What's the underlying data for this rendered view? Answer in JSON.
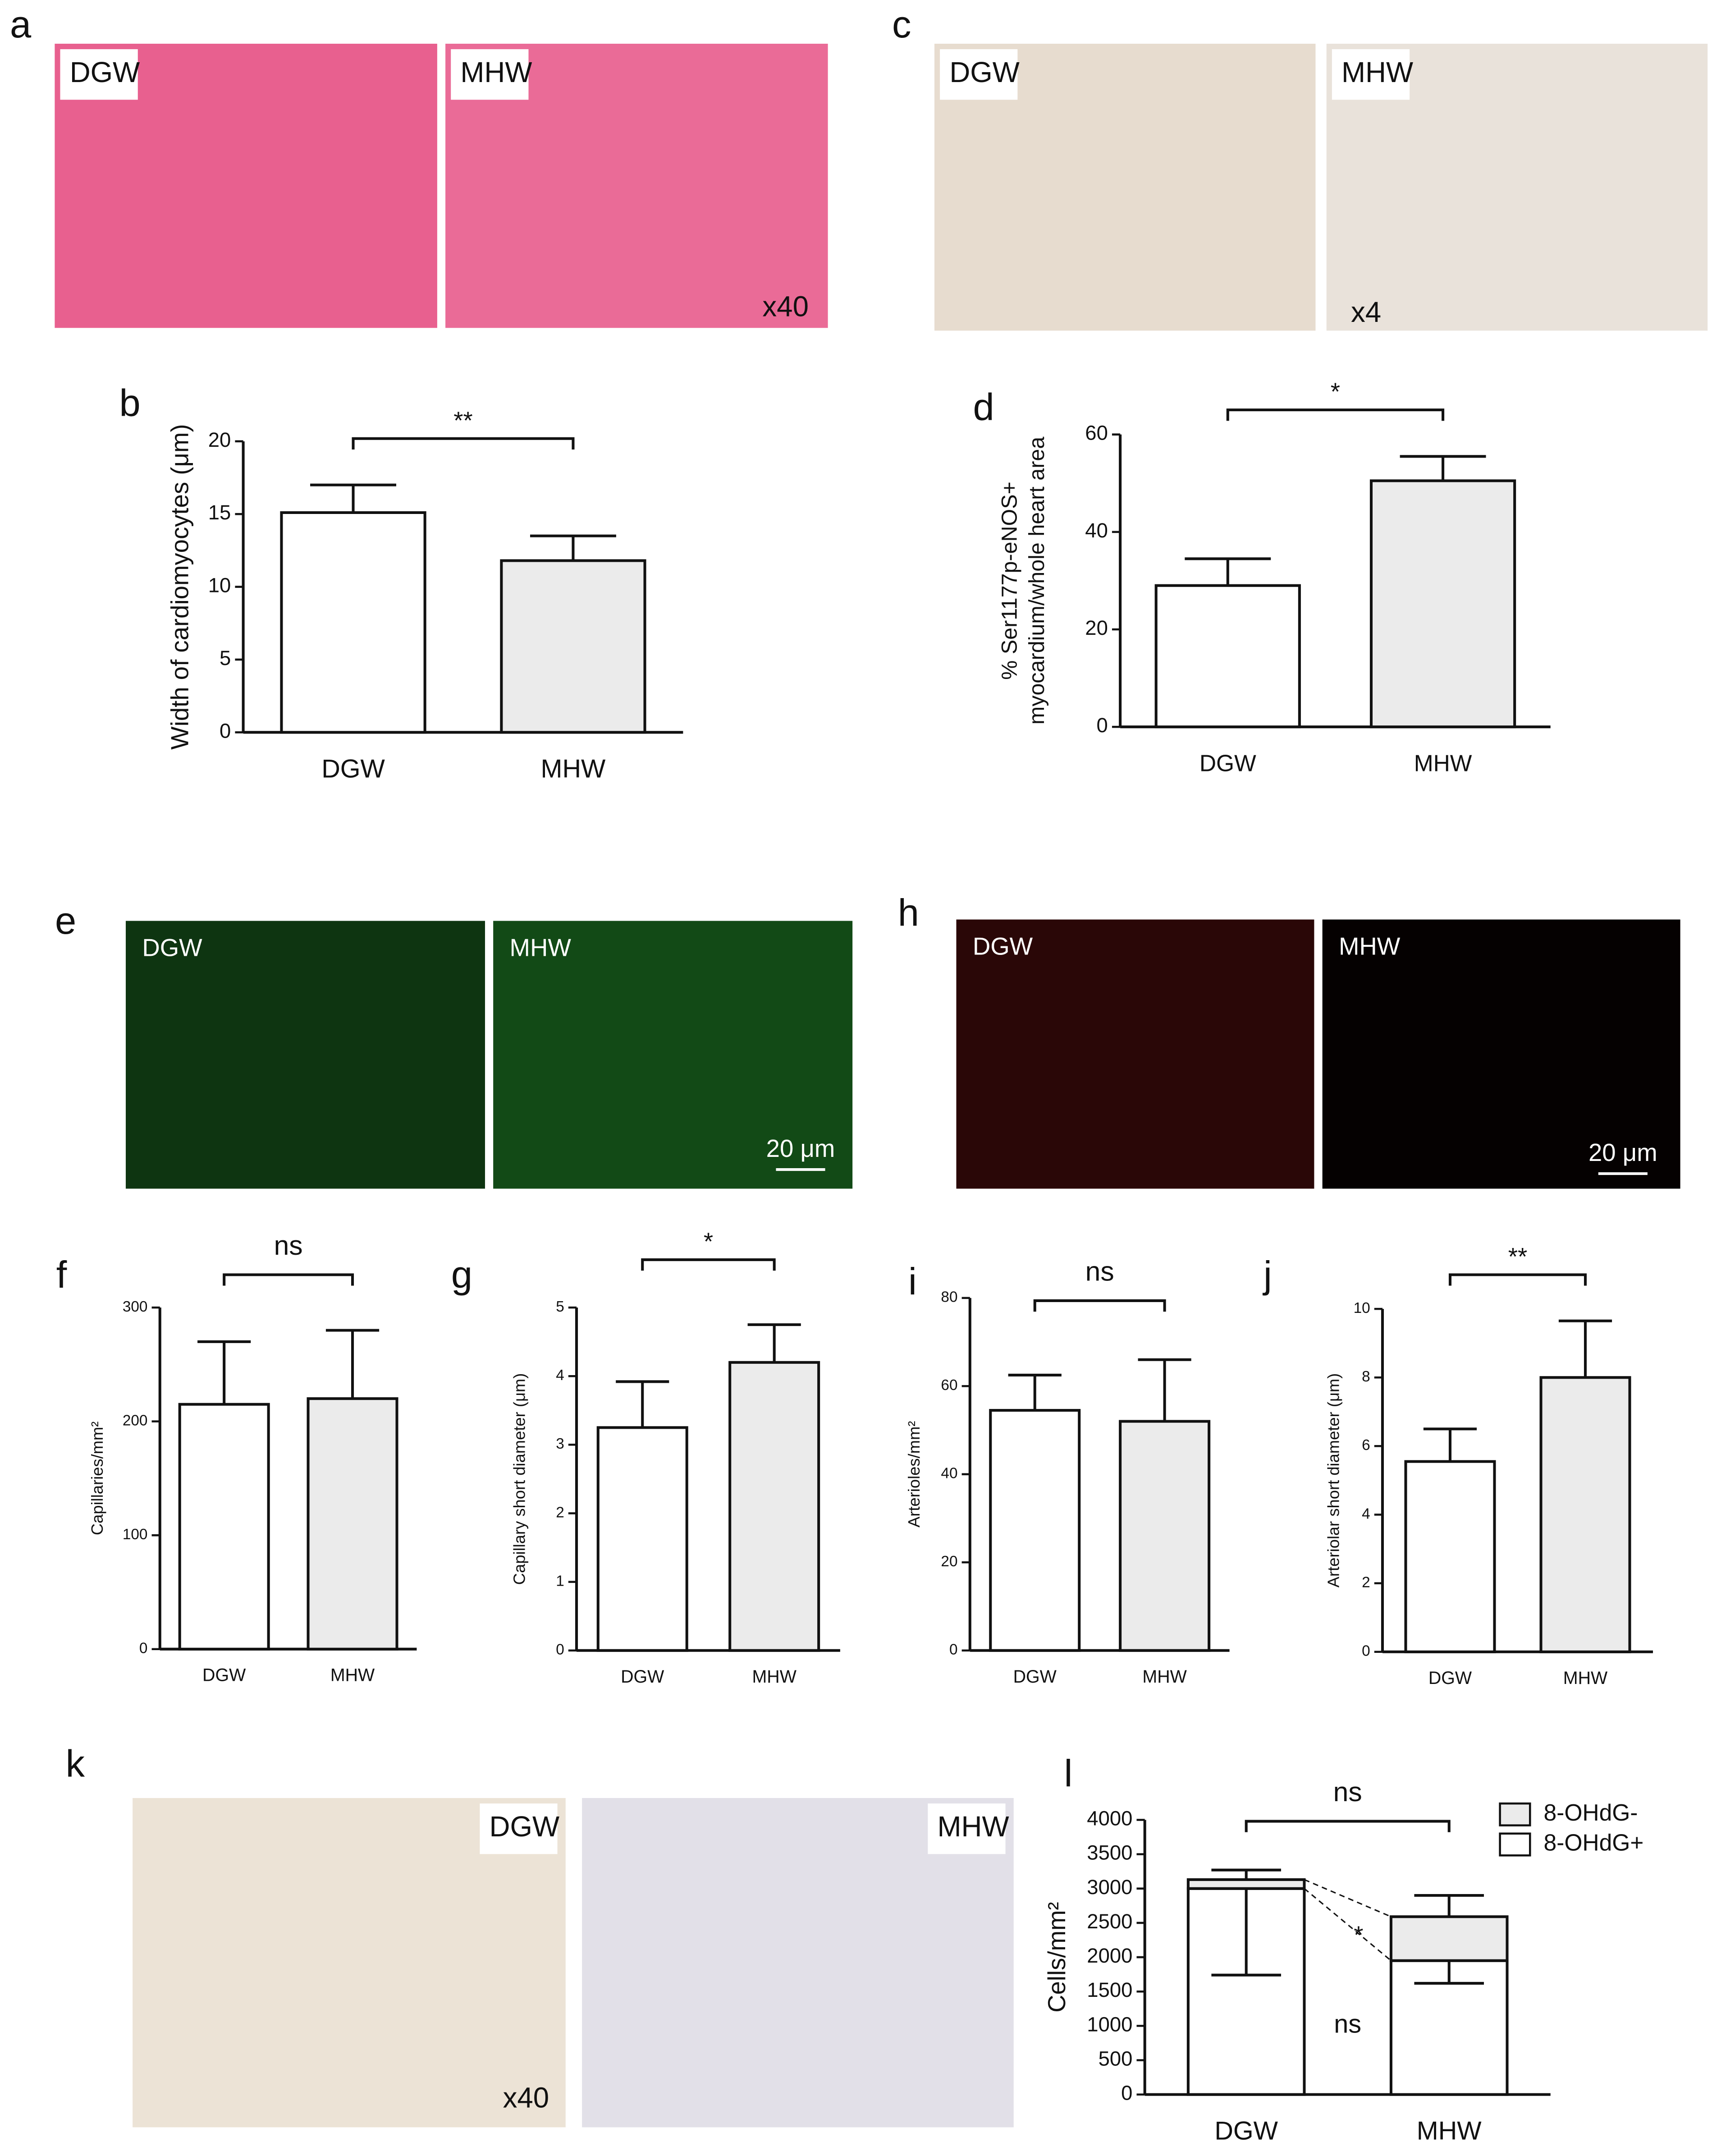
{
  "images": [
    {
      "label": "a",
      "tags": [
        "DGW",
        "MHW"
      ],
      "scale": "x40"
    },
    {
      "label": "c",
      "tags": [
        "DGW",
        "MHW"
      ],
      "scale": "x4"
    },
    {
      "label": "e",
      "tags": [
        "DGW",
        "MHW"
      ],
      "scale": "20 μm"
    },
    {
      "label": "h",
      "tags": [
        "DGW",
        "MHW"
      ],
      "scale": "20 μm"
    },
    {
      "label": "k",
      "tags": [
        "DGW",
        "MHW"
      ],
      "scale": "x40"
    }
  ],
  "chart_data": [
    {
      "type": "bar",
      "panel": "b",
      "y_label": [
        "Width of cardiomyocytes (μm)"
      ],
      "categories": [
        "DGW",
        "MHW"
      ],
      "values": [
        15.1,
        11.8
      ],
      "errors": [
        1.9,
        1.7
      ],
      "colors": [
        "#ffffff",
        "#ebebeb"
      ],
      "ylim": [
        0,
        20
      ],
      "yticks": [
        0,
        5,
        10,
        15,
        20
      ],
      "significance": "**"
    },
    {
      "type": "bar",
      "panel": "d",
      "y_label": [
        "% Ser1177p-eNOS+",
        "myocardium/whole heart area"
      ],
      "categories": [
        "DGW",
        "MHW"
      ],
      "values": [
        29,
        50.5
      ],
      "errors": [
        5.5,
        5
      ],
      "colors": [
        "#ffffff",
        "#ebebeb"
      ],
      "ylim": [
        0,
        60
      ],
      "yticks": [
        0,
        20,
        40,
        60
      ],
      "significance": "*"
    },
    {
      "type": "bar",
      "panel": "f",
      "y_label": [
        "Capillaries/mm²"
      ],
      "categories": [
        "DGW",
        "MHW"
      ],
      "values": [
        215,
        220
      ],
      "errors": [
        55,
        60
      ],
      "colors": [
        "#ffffff",
        "#ebebeb"
      ],
      "ylim": [
        0,
        300
      ],
      "yticks": [
        0,
        100,
        200,
        300
      ],
      "significance": "ns"
    },
    {
      "type": "bar",
      "panel": "g",
      "y_label": [
        "Capillary short diameter (μm)"
      ],
      "categories": [
        "DGW",
        "MHW"
      ],
      "values": [
        3.25,
        4.2
      ],
      "errors": [
        0.67,
        0.55
      ],
      "colors": [
        "#ffffff",
        "#ebebeb"
      ],
      "ylim": [
        0,
        5
      ],
      "yticks": [
        0,
        1,
        2,
        3,
        4,
        5
      ],
      "significance": "*"
    },
    {
      "type": "bar",
      "panel": "i",
      "y_label": [
        "Arterioles/mm²"
      ],
      "categories": [
        "DGW",
        "MHW"
      ],
      "values": [
        54.5,
        52
      ],
      "errors": [
        8,
        14
      ],
      "colors": [
        "#ffffff",
        "#ebebeb"
      ],
      "ylim": [
        0,
        80
      ],
      "yticks": [
        0,
        20,
        40,
        60,
        80
      ],
      "significance": "ns"
    },
    {
      "type": "bar",
      "panel": "j",
      "y_label": [
        "Arteriolar short diameter (μm)"
      ],
      "categories": [
        "DGW",
        "MHW"
      ],
      "values": [
        5.55,
        8
      ],
      "errors": [
        0.95,
        1.65
      ],
      "colors": [
        "#ffffff",
        "#ebebeb"
      ],
      "ylim": [
        0,
        10
      ],
      "yticks": [
        0,
        2,
        4,
        6,
        8,
        10
      ],
      "significance": "**"
    },
    {
      "type": "stacked_bar",
      "panel": "l",
      "y_label": [
        "Cells/mm²"
      ],
      "categories": [
        "DGW",
        "MHW"
      ],
      "series": [
        {
          "name": "8-OHdG+",
          "color": "#ffffff",
          "values": [
            3000,
            1950
          ],
          "errors": [
            1260,
            330
          ],
          "error_direction": "down"
        },
        {
          "name": "8-OHdG-",
          "color": "#ebebeb",
          "values": [
            130,
            640
          ],
          "errors": [
            140,
            310
          ],
          "error_direction": "up"
        }
      ],
      "ylim": [
        0,
        4000
      ],
      "yticks": [
        0,
        500,
        1000,
        1500,
        2000,
        2500,
        3000,
        3500,
        4000
      ],
      "significance": "ns",
      "annotations": [
        "*",
        "ns"
      ]
    }
  ]
}
